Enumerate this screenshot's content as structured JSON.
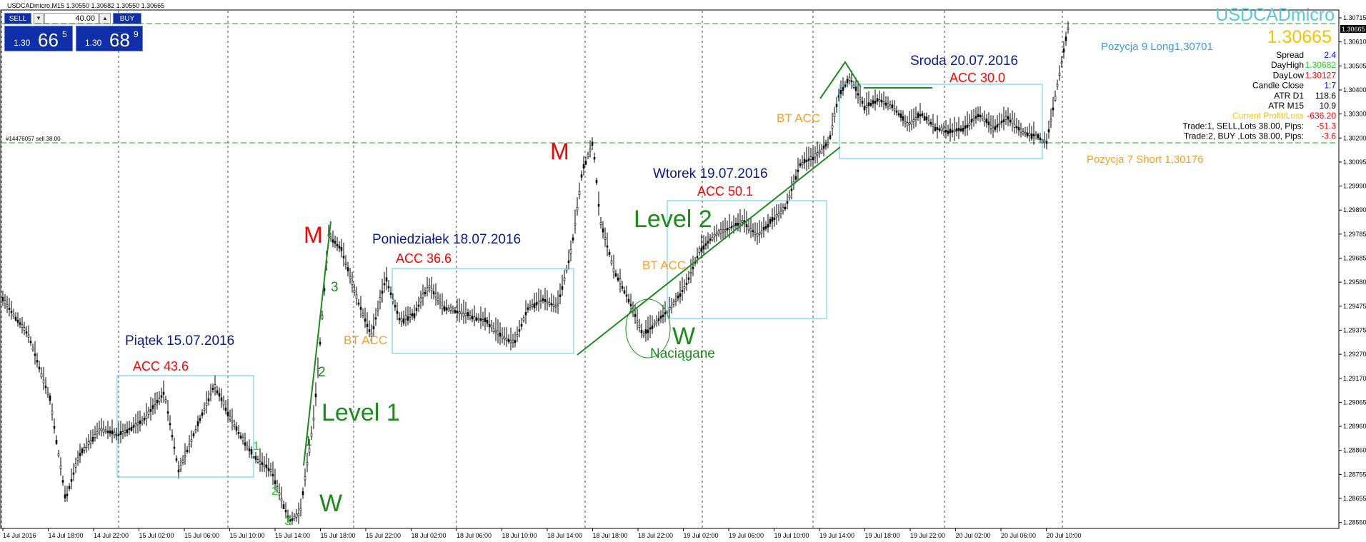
{
  "window": {
    "title": "USDCADmicro,M15  1.30550 1.30682 1.30550 1.30665"
  },
  "trade_panel": {
    "sell_label": "SELL",
    "buy_label": "BUY",
    "dropdown_glyph": "▼",
    "spin_glyph": "▲",
    "lot_value": "40.00",
    "sell_price": {
      "prefix": "1.30",
      "big": "66",
      "sup": "5"
    },
    "buy_price": {
      "prefix": "1.30",
      "big": "68",
      "sup": "9"
    }
  },
  "symbol_header": {
    "symbol": "USDCADmicro",
    "price": "1.30665",
    "symbol_color": "#5bc8d8",
    "price_color": "#f5c400"
  },
  "info_panel": [
    {
      "label": "Spread",
      "value": "2.4",
      "value_color": "#0000ff",
      "label_color": "#000000"
    },
    {
      "label": "DayHigh",
      "value": "1.30682",
      "value_color": "#22cc22",
      "label_color": "#000000"
    },
    {
      "label": "DayLow",
      "value": "1.30127",
      "value_color": "#ff0000",
      "label_color": "#000000"
    },
    {
      "label": "Candle Close",
      "value": "1:7",
      "value_color": "#0000ff",
      "label_color": "#000000"
    },
    {
      "label": "ATR  D1",
      "value": "118.6",
      "value_color": "#000000",
      "label_color": "#000000"
    },
    {
      "label": "ATR  M15",
      "value": "10.9",
      "value_color": "#000000",
      "label_color": "#000000"
    },
    {
      "label": "Current Profit/Loss",
      "value": "-636.20",
      "value_color": "#ff0000",
      "label_color": "#f5c400"
    },
    {
      "label": "Trade:1, SELL,Lots 38.00, Pips:",
      "value": "-51.3",
      "value_color": "#ff0000",
      "label_color": "#000000"
    },
    {
      "label": "Trade:2, BUY ,Lots 38.00, Pips:",
      "value": "-3.6",
      "value_color": "#ff0000",
      "label_color": "#000000"
    }
  ],
  "axis": {
    "price_ticks": [
      "1.30715",
      "1.30610",
      "1.30505",
      "1.30400",
      "1.30300",
      "1.30200",
      "1.30095",
      "1.29990",
      "1.29890",
      "1.29785",
      "1.29685",
      "1.29580",
      "1.29475",
      "1.29375",
      "1.29270",
      "1.29170",
      "1.29065",
      "1.28960",
      "1.28860",
      "1.28755",
      "1.28655",
      "1.28550"
    ],
    "current_price_label": "1.30665",
    "sell_line_label": "1.30200",
    "time_ticks": [
      "14 Jul 2016",
      "14 Jul 18:00",
      "14 Jul 22:00",
      "15 Jul 02:00",
      "15 Jul 06:00",
      "15 Jul 10:00",
      "15 Jul 14:00",
      "15 Jul 18:00",
      "15 Jul 22:00",
      "18 Jul 02:00",
      "18 Jul 06:00",
      "18 Jul 10:00",
      "18 Jul 14:00",
      "18 Jul 18:00",
      "18 Jul 22:00",
      "19 Jul 02:00",
      "19 Jul 06:00",
      "19 Jul 10:00",
      "19 Jul 14:00",
      "19 Jul 18:00",
      "19 Jul 22:00",
      "20 Jul 02:00",
      "20 Jul 06:00",
      "20 Jul 10:00"
    ]
  },
  "order_line": {
    "label": "#14476057 sell 38.00"
  },
  "annotations": {
    "piatek_day": "Piątek 15.07.2016",
    "piatek_acc": "ACC 43.6",
    "poniedzialek_day": "Poniedziałek 18.07.2016",
    "poniedzialek_acc": "ACC 36.6",
    "wtorek_day": "Wtorek 19.07.2016",
    "wtorek_acc": "ACC 50.1",
    "sroda_day": "Sroda 20.07.2016",
    "sroda_acc": "ACC 30.0",
    "level1": "Level 1",
    "level2": "Level 2",
    "m_left": "M",
    "m_right": "M",
    "w_left": "W",
    "w_right": "W",
    "naciagane": "Naciągane",
    "bt_acc_1": "BT ACC",
    "bt_acc_2": "BT ACC",
    "bt_acc_3": "BT ACC",
    "pozycja_long": "Pozycja 9 Long1,30701",
    "pozycja_short": "Pozycja 7 Short 1,30176",
    "wave_1a": "1",
    "wave_2a": "2",
    "wave_3a": "3",
    "wave_1b": "1",
    "wave_2b": "2",
    "wave_3b": "3"
  },
  "colors": {
    "day_label": "#0a1a8c",
    "acc_label": "#ff0000",
    "level_label": "#1a8c1a",
    "bt_acc": "#f5a020",
    "box": "#5bc8e8",
    "candle": "#000000",
    "wave_num": "#22cc22",
    "m_label": "#ff0000"
  }
}
